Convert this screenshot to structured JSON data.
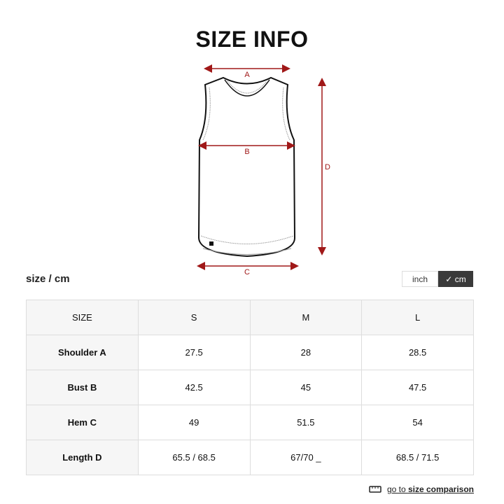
{
  "title": "SIZE INFO",
  "diagram": {
    "labels": [
      "A",
      "B",
      "C",
      "D"
    ],
    "arrow_color": "#a01818"
  },
  "unit_label": "size / cm",
  "unit_toggle": {
    "options": [
      "inch",
      "cm"
    ],
    "selected": "cm",
    "selected_bg": "#3a3a3a"
  },
  "table": {
    "header": [
      "SIZE",
      "S",
      "M",
      "L"
    ],
    "rows": [
      {
        "label": "Shoulder A",
        "values": [
          "27.5",
          "28",
          "28.5"
        ]
      },
      {
        "label": "Bust B",
        "values": [
          "42.5",
          "45",
          "47.5"
        ]
      },
      {
        "label": "Hem C",
        "values": [
          "49",
          "51.5",
          "54"
        ]
      },
      {
        "label": "Length D",
        "values": [
          "65.5 / 68.5",
          "67/70 _",
          "68.5 / 71.5"
        ]
      }
    ]
  },
  "link": {
    "prefix": "go to ",
    "bold": "size comparison",
    "icon": "ruler-icon"
  }
}
